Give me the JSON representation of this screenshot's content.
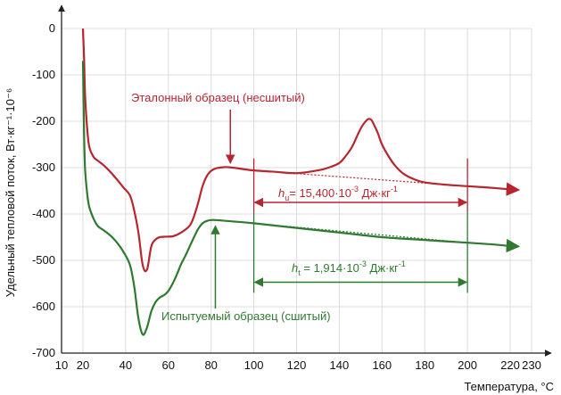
{
  "chart_data": {
    "type": "line",
    "title": "",
    "xlabel": "Температура, °C",
    "ylabel": "Удельный тепловой поток, Вт·кг⁻¹·10⁻⁶",
    "xlim": [
      10,
      230
    ],
    "ylim": [
      -700,
      0
    ],
    "x_ticks": [
      10,
      20,
      40,
      60,
      80,
      100,
      120,
      140,
      160,
      180,
      200,
      220,
      230
    ],
    "y_ticks": [
      0,
      -100,
      -200,
      -300,
      -400,
      -500,
      -600,
      -700
    ],
    "grid": true,
    "series": [
      {
        "name": "Эталонный образец (несшитый)",
        "color": "#b7262e",
        "x": [
          20,
          20.5,
          21,
          22,
          23,
          25,
          27,
          30,
          33,
          36,
          39,
          42,
          44,
          46,
          48,
          50,
          52,
          54,
          56,
          58,
          62,
          66,
          70,
          72,
          74,
          76,
          78,
          80,
          82,
          84,
          86,
          88,
          90,
          95,
          100,
          110,
          120,
          130,
          135,
          140,
          143,
          146,
          149,
          151,
          153,
          154,
          155,
          156,
          158,
          160,
          163,
          166,
          170,
          175,
          180,
          190,
          200,
          210,
          220,
          224
        ],
        "values": [
          0,
          -60,
          -140,
          -215,
          -255,
          -277,
          -285,
          -296,
          -310,
          -326,
          -343,
          -360,
          -392,
          -440,
          -510,
          -520,
          -470,
          -455,
          -450,
          -449,
          -448,
          -440,
          -425,
          -405,
          -375,
          -340,
          -318,
          -307,
          -302,
          -300,
          -299,
          -299,
          -300,
          -303,
          -306,
          -309,
          -312,
          -306,
          -300,
          -290,
          -275,
          -255,
          -225,
          -208,
          -197,
          -195,
          -197,
          -205,
          -225,
          -250,
          -275,
          -295,
          -313,
          -325,
          -332,
          -337,
          -340,
          -343,
          -347,
          -348
        ]
      },
      {
        "name": "Испытуемый образец (сшитый)",
        "color": "#2f7a30",
        "x": [
          20,
          20.5,
          21,
          22,
          23,
          25,
          27,
          30,
          33,
          36,
          39,
          42,
          44,
          46,
          48,
          50,
          52,
          54,
          56,
          58,
          60,
          62,
          64,
          66,
          68,
          70,
          72,
          74,
          76,
          78,
          80,
          82,
          85,
          90,
          100,
          110,
          120,
          140,
          160,
          180,
          200,
          210,
          220,
          224
        ],
        "values": [
          -70,
          -220,
          -300,
          -355,
          -385,
          -410,
          -426,
          -436,
          -447,
          -462,
          -482,
          -510,
          -555,
          -625,
          -660,
          -645,
          -610,
          -590,
          -580,
          -575,
          -566,
          -550,
          -530,
          -508,
          -490,
          -470,
          -450,
          -432,
          -420,
          -415,
          -413,
          -413,
          -414,
          -416,
          -420,
          -425,
          -430,
          -440,
          -450,
          -456,
          -462,
          -465,
          -469,
          -470
        ]
      }
    ],
    "baselines": [
      {
        "series": "Эталонный образец (несшитый)",
        "x": [
          100,
          200
        ],
        "values": [
          -306,
          -340
        ]
      },
      {
        "series": "Испытуемый образец (сшитый)",
        "x": [
          100,
          200
        ],
        "values": [
          -420,
          -462
        ]
      }
    ],
    "annotations": [
      {
        "text": "Эталонный образец (несшитый)",
        "arrow_to": [
          89,
          -298
        ]
      },
      {
        "text": "Испытуемый образец (сшитый)",
        "arrow_to": [
          82,
          -418
        ]
      },
      {
        "text": "h_u = 15,400·10⁻³ Дж·кг⁻¹",
        "range": [
          100,
          200
        ],
        "at_y": -375
      },
      {
        "text": "h_t = 1,914·10⁻³ Дж·кг⁻¹",
        "range": [
          100,
          200
        ],
        "at_y": -547
      }
    ]
  },
  "labels": {
    "reference_sample": "Эталонный образец (несшитый)",
    "test_sample": "Испытуемый образец (сшитый)",
    "hu_symbol": "h",
    "hu_sub": "u",
    "hu_rest": "= 15,400·10",
    "hu_exp": "-3",
    "hu_unit": " Дж·кг",
    "hu_unit_exp": "-1",
    "ht_symbol": "h",
    "ht_sub": "t",
    "ht_rest": " = 1,914·10",
    "ht_exp": "-3",
    "ht_unit": " Дж·кг",
    "ht_unit_exp": "-1"
  }
}
